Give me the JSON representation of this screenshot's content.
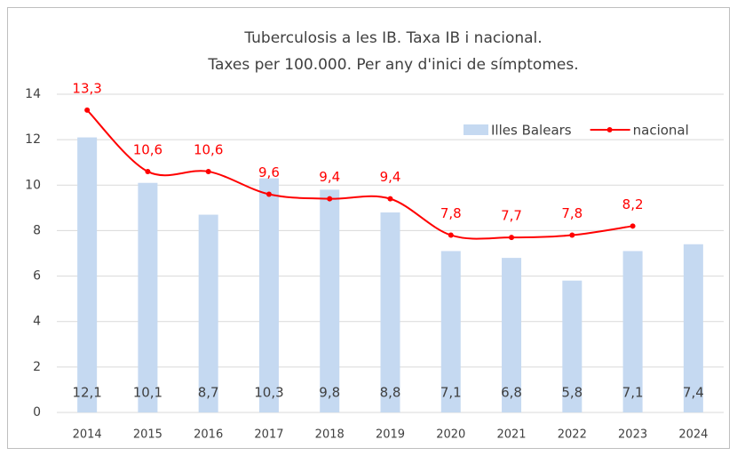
{
  "chart_data": {
    "type": "combo",
    "title": [
      "Tuberculosis a les IB. Taxa IB i nacional.",
      "Taxes per 100.000. Per any d'inici de símptomes."
    ],
    "categories": [
      "2014",
      "2015",
      "2016",
      "2017",
      "2018",
      "2019",
      "2020",
      "2021",
      "2022",
      "2023",
      "2024"
    ],
    "series": [
      {
        "name": "Illes Balears",
        "type": "bar",
        "color": "#c5d9f1",
        "values": [
          12.1,
          10.1,
          8.7,
          10.3,
          9.8,
          8.8,
          7.1,
          6.8,
          5.8,
          7.1,
          7.4
        ],
        "value_labels": [
          "12,1",
          "10,1",
          "8,7",
          "10,3",
          "9,8",
          "8,8",
          "7,1",
          "6,8",
          "5,8",
          "7,1",
          "7,4"
        ]
      },
      {
        "name": "nacional",
        "type": "line",
        "color": "#ff0000",
        "values": [
          13.3,
          10.6,
          10.6,
          9.6,
          9.4,
          9.4,
          7.8,
          7.7,
          7.8,
          8.2,
          null
        ],
        "value_labels": [
          "13,3",
          "10,6",
          "10,6",
          "9,6",
          "9,4",
          "9,4",
          "7,8",
          "7,7",
          "7,8",
          "8,2",
          null
        ]
      }
    ],
    "ylim": [
      0,
      14
    ],
    "yticks": [
      0,
      2,
      4,
      6,
      8,
      10,
      12,
      14
    ],
    "grid": true,
    "legend": "top-right"
  }
}
